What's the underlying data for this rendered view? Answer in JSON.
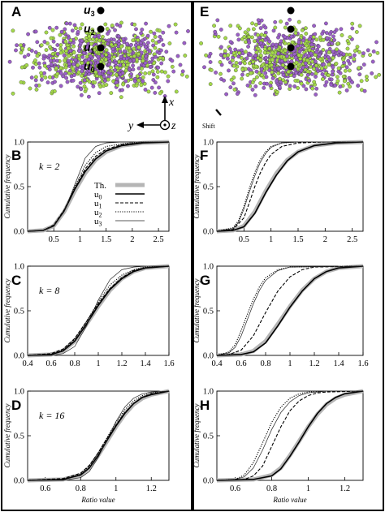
{
  "panel_letters": [
    "A",
    "B",
    "C",
    "D",
    "E",
    "F",
    "G",
    "H"
  ],
  "scatter": {
    "point_labels": [
      {
        "base": "u",
        "sub": "3"
      },
      {
        "base": "u",
        "sub": "2"
      },
      {
        "base": "u",
        "sub": "1"
      },
      {
        "base": "u",
        "sub": "0"
      }
    ],
    "axes": {
      "x": "x",
      "y": "y",
      "z": "z"
    },
    "shift_label": "Shift",
    "colors": {
      "green": "#a4d94a",
      "purple": "#9b5fc7",
      "marker": "#000000"
    }
  },
  "legend": [
    {
      "label": "Th.",
      "style": "thick-gray"
    },
    {
      "label": "u",
      "sub": "0",
      "style": "solid"
    },
    {
      "label": "u",
      "sub": "1",
      "style": "dashed"
    },
    {
      "label": "u",
      "sub": "2",
      "style": "dotted"
    },
    {
      "label": "u",
      "sub": "3",
      "style": "thin"
    }
  ],
  "ylabel": "Cumulative frequency",
  "xlabel": "Ratio value",
  "chart_data": [
    {
      "panel": "B",
      "type": "line",
      "k_label": "k = 2",
      "xlim": [
        0,
        2.7
      ],
      "ylim": [
        0,
        1
      ],
      "xticks": [
        "0.5",
        "1",
        "1.5",
        "2",
        "2.5"
      ],
      "yticks": [
        "0.0",
        "0.5",
        "1.0"
      ],
      "series": [
        {
          "name": "Th.",
          "x": [
            0,
            0.3,
            0.5,
            0.7,
            0.9,
            1.1,
            1.3,
            1.5,
            1.8,
            2.2,
            2.7
          ],
          "y": [
            0,
            0.01,
            0.06,
            0.22,
            0.45,
            0.65,
            0.8,
            0.89,
            0.96,
            0.99,
            1.0
          ]
        },
        {
          "name": "u0",
          "x": [
            0,
            0.3,
            0.5,
            0.7,
            0.9,
            1.1,
            1.3,
            1.5,
            1.8,
            2.2,
            2.7
          ],
          "y": [
            0,
            0.01,
            0.06,
            0.23,
            0.47,
            0.67,
            0.81,
            0.9,
            0.96,
            0.99,
            1.0
          ]
        },
        {
          "name": "u1",
          "x": [
            0,
            0.3,
            0.5,
            0.7,
            0.9,
            1.1,
            1.3,
            1.5,
            1.8,
            2.2,
            2.7
          ],
          "y": [
            0,
            0.01,
            0.07,
            0.24,
            0.48,
            0.7,
            0.84,
            0.92,
            0.97,
            0.995,
            1.0
          ]
        },
        {
          "name": "u2",
          "x": [
            0,
            0.3,
            0.5,
            0.7,
            0.9,
            1.1,
            1.3,
            1.5,
            1.8,
            2.2,
            2.7
          ],
          "y": [
            0,
            0.01,
            0.06,
            0.23,
            0.5,
            0.74,
            0.88,
            0.95,
            0.98,
            1.0,
            1.0
          ]
        },
        {
          "name": "u3",
          "x": [
            0,
            0.3,
            0.5,
            0.7,
            0.9,
            1.1,
            1.3,
            1.5,
            1.8,
            2.2,
            2.7
          ],
          "y": [
            0,
            0.01,
            0.06,
            0.22,
            0.52,
            0.82,
            0.95,
            0.99,
            1.0,
            1.0,
            1.0
          ]
        }
      ]
    },
    {
      "panel": "C",
      "type": "line",
      "k_label": "k = 8",
      "xlim": [
        0.4,
        1.6
      ],
      "ylim": [
        0,
        1
      ],
      "xticks": [
        "0.4",
        "0.6",
        "0.8",
        "1",
        "1.2",
        "1.4",
        "1.6"
      ],
      "yticks": [
        "0.0",
        "0.5",
        "1.0"
      ],
      "series": [
        {
          "name": "Th.",
          "x": [
            0.4,
            0.6,
            0.7,
            0.8,
            0.9,
            1.0,
            1.1,
            1.2,
            1.3,
            1.4,
            1.6
          ],
          "y": [
            0,
            0.01,
            0.05,
            0.16,
            0.35,
            0.55,
            0.73,
            0.86,
            0.94,
            0.98,
            1.0
          ]
        },
        {
          "name": "u0",
          "x": [
            0.4,
            0.6,
            0.7,
            0.8,
            0.9,
            1.0,
            1.1,
            1.2,
            1.3,
            1.4,
            1.6
          ],
          "y": [
            0,
            0.01,
            0.05,
            0.16,
            0.35,
            0.56,
            0.74,
            0.86,
            0.94,
            0.98,
            1.0
          ]
        },
        {
          "name": "u1",
          "x": [
            0.4,
            0.6,
            0.7,
            0.8,
            0.9,
            1.0,
            1.1,
            1.2,
            1.3,
            1.4,
            1.6
          ],
          "y": [
            0,
            0.02,
            0.07,
            0.19,
            0.38,
            0.58,
            0.75,
            0.87,
            0.95,
            0.98,
            1.0
          ]
        },
        {
          "name": "u2",
          "x": [
            0.4,
            0.6,
            0.7,
            0.8,
            0.9,
            1.0,
            1.1,
            1.2,
            1.3,
            1.4,
            1.6
          ],
          "y": [
            0,
            0.01,
            0.06,
            0.18,
            0.38,
            0.6,
            0.79,
            0.9,
            0.96,
            0.99,
            1.0
          ]
        },
        {
          "name": "u3",
          "x": [
            0.4,
            0.6,
            0.7,
            0.8,
            0.9,
            1.0,
            1.1,
            1.2,
            1.3,
            1.4,
            1.6
          ],
          "y": [
            0,
            0.0,
            0.02,
            0.1,
            0.33,
            0.62,
            0.85,
            0.96,
            0.99,
            1.0,
            1.0
          ]
        }
      ]
    },
    {
      "panel": "D",
      "type": "line",
      "k_label": "k = 16",
      "xlim": [
        0.5,
        1.3
      ],
      "ylim": [
        0,
        1
      ],
      "xticks": [
        "0.6",
        "0.8",
        "1",
        "1.2"
      ],
      "yticks": [
        "0.0",
        "0.5",
        "1.0"
      ],
      "series": [
        {
          "name": "Th.",
          "x": [
            0.5,
            0.7,
            0.8,
            0.85,
            0.9,
            0.95,
            1.0,
            1.05,
            1.1,
            1.15,
            1.2,
            1.3
          ],
          "y": [
            0,
            0.01,
            0.06,
            0.14,
            0.28,
            0.44,
            0.6,
            0.74,
            0.85,
            0.92,
            0.96,
            1.0
          ]
        },
        {
          "name": "u0",
          "x": [
            0.5,
            0.7,
            0.8,
            0.85,
            0.9,
            0.95,
            1.0,
            1.05,
            1.1,
            1.15,
            1.2,
            1.3
          ],
          "y": [
            0,
            0.01,
            0.06,
            0.14,
            0.28,
            0.45,
            0.61,
            0.75,
            0.86,
            0.93,
            0.96,
            1.0
          ]
        },
        {
          "name": "u1",
          "x": [
            0.5,
            0.7,
            0.8,
            0.85,
            0.9,
            0.95,
            1.0,
            1.05,
            1.1,
            1.15,
            1.2,
            1.3
          ],
          "y": [
            0,
            0.02,
            0.08,
            0.17,
            0.31,
            0.47,
            0.62,
            0.76,
            0.86,
            0.93,
            0.97,
            1.0
          ]
        },
        {
          "name": "u2",
          "x": [
            0.5,
            0.7,
            0.8,
            0.85,
            0.9,
            0.95,
            1.0,
            1.05,
            1.1,
            1.15,
            1.2,
            1.3
          ],
          "y": [
            0,
            0.01,
            0.07,
            0.16,
            0.31,
            0.48,
            0.65,
            0.79,
            0.89,
            0.95,
            0.98,
            1.0
          ]
        },
        {
          "name": "u3",
          "x": [
            0.5,
            0.7,
            0.8,
            0.85,
            0.9,
            0.95,
            1.0,
            1.05,
            1.1,
            1.15,
            1.2,
            1.3
          ],
          "y": [
            0,
            0.0,
            0.03,
            0.1,
            0.26,
            0.46,
            0.66,
            0.82,
            0.92,
            0.97,
            0.99,
            1.0
          ]
        }
      ]
    },
    {
      "panel": "F",
      "type": "line",
      "k_label": "",
      "xlim": [
        0,
        2.7
      ],
      "ylim": [
        0,
        1
      ],
      "xticks": [
        "0.5",
        "1",
        "1.5",
        "2",
        "2.5"
      ],
      "yticks": [
        "0.0",
        "0.5",
        "1.0"
      ],
      "series": [
        {
          "name": "Th.",
          "x": [
            0,
            0.3,
            0.5,
            0.7,
            0.9,
            1.1,
            1.3,
            1.5,
            1.8,
            2.2,
            2.7
          ],
          "y": [
            0,
            0.01,
            0.06,
            0.22,
            0.45,
            0.65,
            0.8,
            0.89,
            0.96,
            0.99,
            1.0
          ]
        },
        {
          "name": "u0",
          "x": [
            0,
            0.3,
            0.5,
            0.7,
            0.9,
            1.1,
            1.3,
            1.5,
            1.8,
            2.2,
            2.7
          ],
          "y": [
            0,
            0.01,
            0.05,
            0.2,
            0.43,
            0.63,
            0.79,
            0.89,
            0.96,
            0.99,
            1.0
          ]
        },
        {
          "name": "u1",
          "x": [
            0,
            0.3,
            0.5,
            0.6,
            0.7,
            0.8,
            0.9,
            1.0,
            1.2,
            1.5,
            2.0,
            2.7
          ],
          "y": [
            0,
            0.02,
            0.15,
            0.32,
            0.5,
            0.65,
            0.77,
            0.86,
            0.95,
            0.99,
            1.0,
            1.0
          ]
        },
        {
          "name": "u2",
          "x": [
            0,
            0.3,
            0.4,
            0.5,
            0.6,
            0.7,
            0.8,
            0.9,
            1.0,
            1.2,
            1.5,
            2.7
          ],
          "y": [
            0,
            0.04,
            0.12,
            0.28,
            0.48,
            0.66,
            0.8,
            0.89,
            0.95,
            0.99,
            1.0,
            1.0
          ]
        },
        {
          "name": "u3",
          "x": [
            0,
            0.3,
            0.4,
            0.5,
            0.6,
            0.7,
            0.8,
            0.9,
            1.0,
            1.2,
            1.5,
            2.7
          ],
          "y": [
            0,
            0.03,
            0.1,
            0.25,
            0.44,
            0.62,
            0.77,
            0.87,
            0.94,
            0.99,
            1.0,
            1.0
          ]
        }
      ]
    },
    {
      "panel": "G",
      "type": "line",
      "k_label": "",
      "xlim": [
        0.4,
        1.6
      ],
      "ylim": [
        0,
        1
      ],
      "xticks": [
        "0.4",
        "0.6",
        "0.8",
        "1",
        "1.2",
        "1.4",
        "1.6"
      ],
      "yticks": [
        "0.0",
        "0.5",
        "1.0"
      ],
      "series": [
        {
          "name": "Th.",
          "x": [
            0.4,
            0.6,
            0.7,
            0.8,
            0.9,
            1.0,
            1.1,
            1.2,
            1.3,
            1.4,
            1.6
          ],
          "y": [
            0,
            0.01,
            0.05,
            0.16,
            0.35,
            0.55,
            0.73,
            0.86,
            0.94,
            0.98,
            1.0
          ]
        },
        {
          "name": "u0",
          "x": [
            0.4,
            0.6,
            0.7,
            0.8,
            0.9,
            1.0,
            1.1,
            1.2,
            1.3,
            1.4,
            1.6
          ],
          "y": [
            0,
            0.01,
            0.04,
            0.14,
            0.33,
            0.54,
            0.72,
            0.86,
            0.94,
            0.98,
            1.0
          ]
        },
        {
          "name": "u1",
          "x": [
            0.4,
            0.5,
            0.6,
            0.7,
            0.8,
            0.85,
            0.9,
            1.0,
            1.1,
            1.2,
            1.6
          ],
          "y": [
            0,
            0.01,
            0.06,
            0.22,
            0.48,
            0.6,
            0.72,
            0.88,
            0.96,
            0.99,
            1.0
          ]
        },
        {
          "name": "u2",
          "x": [
            0.4,
            0.5,
            0.55,
            0.6,
            0.65,
            0.7,
            0.75,
            0.8,
            0.9,
            1.0,
            1.6
          ],
          "y": [
            0,
            0.04,
            0.12,
            0.28,
            0.46,
            0.63,
            0.77,
            0.87,
            0.96,
            0.99,
            1.0
          ]
        },
        {
          "name": "u3",
          "x": [
            0.4,
            0.5,
            0.55,
            0.6,
            0.65,
            0.7,
            0.75,
            0.8,
            0.9,
            1.0,
            1.6
          ],
          "y": [
            0,
            0.03,
            0.09,
            0.22,
            0.4,
            0.58,
            0.73,
            0.84,
            0.95,
            0.99,
            1.0
          ]
        }
      ]
    },
    {
      "panel": "H",
      "type": "line",
      "k_label": "",
      "xlim": [
        0.5,
        1.3
      ],
      "ylim": [
        0,
        1
      ],
      "xticks": [
        "0.6",
        "0.8",
        "1",
        "1.2"
      ],
      "yticks": [
        "0.0",
        "0.5",
        "1.0"
      ],
      "series": [
        {
          "name": "Th.",
          "x": [
            0.5,
            0.7,
            0.8,
            0.85,
            0.9,
            0.95,
            1.0,
            1.05,
            1.1,
            1.15,
            1.2,
            1.3
          ],
          "y": [
            0,
            0.01,
            0.06,
            0.14,
            0.28,
            0.44,
            0.6,
            0.74,
            0.85,
            0.92,
            0.96,
            1.0
          ]
        },
        {
          "name": "u0",
          "x": [
            0.5,
            0.7,
            0.8,
            0.85,
            0.9,
            0.95,
            1.0,
            1.05,
            1.1,
            1.15,
            1.2,
            1.3
          ],
          "y": [
            0,
            0.01,
            0.05,
            0.13,
            0.27,
            0.43,
            0.6,
            0.75,
            0.86,
            0.93,
            0.97,
            1.0
          ]
        },
        {
          "name": "u1",
          "x": [
            0.5,
            0.65,
            0.7,
            0.75,
            0.8,
            0.85,
            0.9,
            0.95,
            1.0,
            1.05,
            1.1,
            1.3
          ],
          "y": [
            0,
            0.01,
            0.05,
            0.16,
            0.38,
            0.6,
            0.78,
            0.89,
            0.95,
            0.98,
            0.99,
            1.0
          ]
        },
        {
          "name": "u2",
          "x": [
            0.5,
            0.6,
            0.65,
            0.7,
            0.75,
            0.8,
            0.85,
            0.9,
            0.95,
            1.0,
            1.1,
            1.3
          ],
          "y": [
            0,
            0.01,
            0.06,
            0.2,
            0.42,
            0.65,
            0.82,
            0.92,
            0.97,
            0.99,
            1.0,
            1.0
          ]
        },
        {
          "name": "u3",
          "x": [
            0.5,
            0.6,
            0.65,
            0.7,
            0.75,
            0.8,
            0.85,
            0.9,
            0.95,
            1.0,
            1.1,
            1.3
          ],
          "y": [
            0,
            0.01,
            0.04,
            0.14,
            0.34,
            0.57,
            0.76,
            0.88,
            0.95,
            0.98,
            1.0,
            1.0
          ]
        }
      ]
    }
  ]
}
